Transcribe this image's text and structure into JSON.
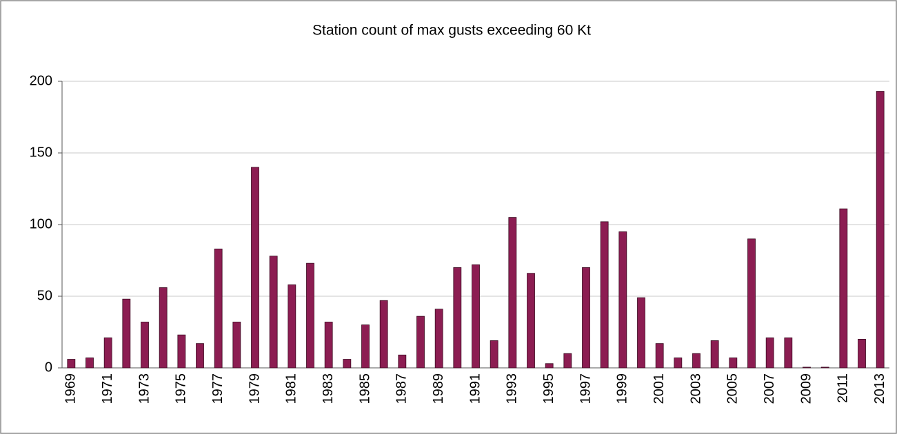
{
  "chart_data": {
    "type": "bar",
    "title": "Station count of max gusts exceeding 60 Kt",
    "categories": [
      "1969",
      null,
      "1971",
      null,
      "1973",
      null,
      "1975",
      null,
      "1977",
      null,
      "1979",
      null,
      "1981",
      null,
      "1983",
      null,
      "1985",
      null,
      "1987",
      null,
      "1989",
      null,
      "1991",
      null,
      "1993",
      null,
      "1995",
      null,
      "1997",
      null,
      "1999",
      null,
      "2001",
      null,
      "2003",
      null,
      "2005",
      null,
      "2007",
      null,
      "2009",
      null,
      "2011",
      null,
      "2013"
    ],
    "values": [
      6,
      7,
      21,
      48,
      32,
      56,
      23,
      17,
      83,
      32,
      140,
      78,
      58,
      73,
      32,
      6,
      30,
      47,
      9,
      36,
      41,
      70,
      72,
      19,
      105,
      66,
      3,
      10,
      70,
      102,
      95,
      49,
      17,
      7,
      10,
      19,
      7,
      90,
      21,
      21,
      0.5,
      0.5,
      111,
      20,
      193
    ],
    "color": "#8c1d52",
    "ylim": [
      0,
      200
    ],
    "yticks": [
      0,
      50,
      100,
      150,
      200
    ],
    "grid": true
  }
}
